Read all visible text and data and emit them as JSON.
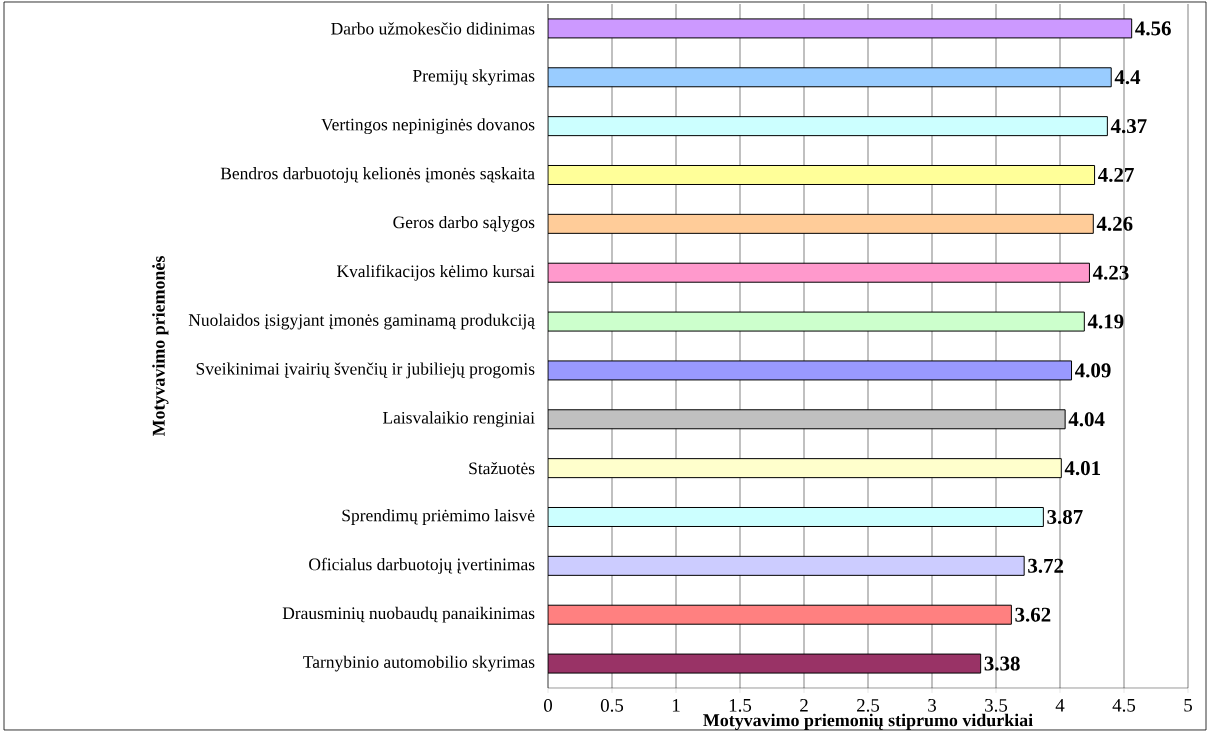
{
  "chart_data": {
    "type": "bar",
    "orientation": "horizontal",
    "xlabel": "Motyvavimo priemonių stiprumo vidurkiai",
    "ylabel": "Motyvavimo priemonės",
    "categories": [
      "Darbo užmokesčio didinimas",
      "Premijų skyrimas",
      "Vertingos nepiniginės dovanos",
      "Bendros darbuotojų kelionės įmonės sąskaita",
      "Geros darbo sąlygos",
      "Kvalifikacijos kėlimo kursai",
      "Nuolaidos įsigyjant įmonės gaminamą produkciją",
      "Sveikinimai įvairių švenčių ir jubiliejų progomis",
      "Laisvalaikio renginiai",
      "Stažuotės",
      "Sprendimų priėmimo laisvė",
      "Oficialus darbuotojų įvertinimas",
      "Drausminių nuobaudų panaikinimas",
      "Tarnybinio automobilio skyrimas"
    ],
    "values": [
      4.56,
      4.4,
      4.37,
      4.27,
      4.26,
      4.23,
      4.19,
      4.09,
      4.04,
      4.01,
      3.87,
      3.72,
      3.62,
      3.38
    ],
    "colors": [
      "#cc99ff",
      "#99ccff",
      "#ccffff",
      "#ffff99",
      "#ffcc99",
      "#ff99cc",
      "#ccffcc",
      "#9999ff",
      "#c0c0c0",
      "#ffffcc",
      "#ccffff",
      "#ccccff",
      "#ff8080",
      "#993366"
    ],
    "xlim": [
      0,
      5
    ],
    "xticks": [
      0,
      0.5,
      1,
      1.5,
      2,
      2.5,
      3,
      3.5,
      4,
      4.5,
      5
    ],
    "grid": "x",
    "data_labels": true
  }
}
